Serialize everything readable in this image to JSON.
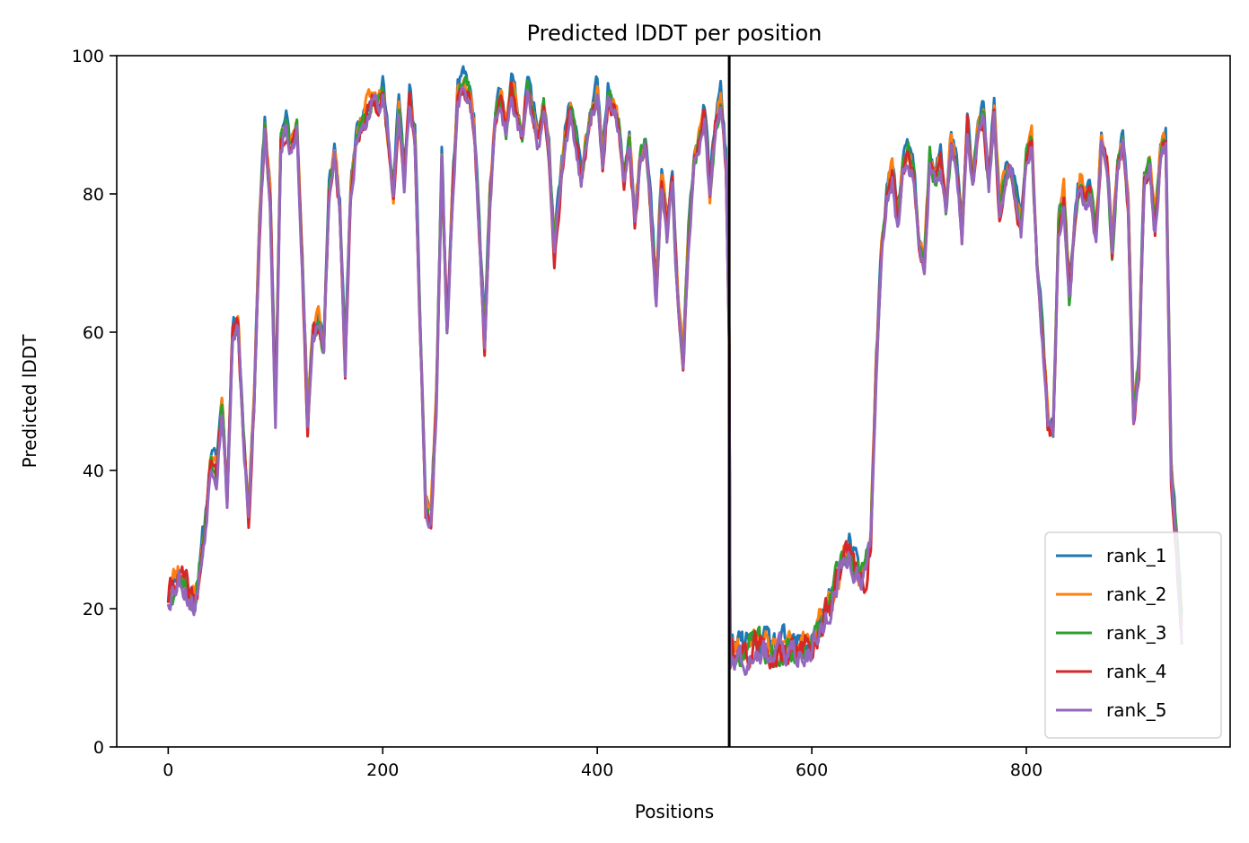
{
  "chart_data": {
    "type": "line",
    "title": "Predicted lDDT per position",
    "xlabel": "Positions",
    "ylabel": "Predicted lDDT",
    "xlim": [
      -48,
      990
    ],
    "ylim": [
      0,
      100
    ],
    "xticks": [
      0,
      200,
      400,
      600,
      800
    ],
    "yticks": [
      0,
      20,
      40,
      60,
      80,
      100
    ],
    "grid": false,
    "legend_position": "lower-right",
    "chain_break_x": 523,
    "chain_break_color": "#000000",
    "base_profile": [
      [
        0,
        22
      ],
      [
        5,
        24
      ],
      [
        10,
        25
      ],
      [
        15,
        24
      ],
      [
        20,
        22
      ],
      [
        25,
        21
      ],
      [
        30,
        26
      ],
      [
        35,
        33
      ],
      [
        40,
        42
      ],
      [
        45,
        40
      ],
      [
        50,
        50
      ],
      [
        55,
        36
      ],
      [
        60,
        60
      ],
      [
        65,
        62
      ],
      [
        70,
        45
      ],
      [
        75,
        33
      ],
      [
        80,
        50
      ],
      [
        85,
        75
      ],
      [
        90,
        90
      ],
      [
        95,
        80
      ],
      [
        100,
        48
      ],
      [
        105,
        88
      ],
      [
        110,
        90
      ],
      [
        115,
        86
      ],
      [
        120,
        90
      ],
      [
        125,
        70
      ],
      [
        130,
        47
      ],
      [
        135,
        60
      ],
      [
        140,
        62
      ],
      [
        145,
        58
      ],
      [
        150,
        80
      ],
      [
        155,
        86
      ],
      [
        160,
        78
      ],
      [
        165,
        55
      ],
      [
        170,
        80
      ],
      [
        175,
        88
      ],
      [
        180,
        90
      ],
      [
        185,
        92
      ],
      [
        190,
        94
      ],
      [
        195,
        93
      ],
      [
        200,
        95
      ],
      [
        205,
        88
      ],
      [
        210,
        80
      ],
      [
        215,
        93
      ],
      [
        220,
        82
      ],
      [
        225,
        94
      ],
      [
        230,
        88
      ],
      [
        235,
        60
      ],
      [
        240,
        35
      ],
      [
        245,
        33
      ],
      [
        250,
        50
      ],
      [
        255,
        85
      ],
      [
        260,
        60
      ],
      [
        265,
        80
      ],
      [
        270,
        94
      ],
      [
        275,
        96
      ],
      [
        280,
        95
      ],
      [
        285,
        90
      ],
      [
        290,
        75
      ],
      [
        295,
        58
      ],
      [
        300,
        80
      ],
      [
        305,
        91
      ],
      [
        310,
        94
      ],
      [
        315,
        89
      ],
      [
        320,
        96
      ],
      [
        325,
        92
      ],
      [
        330,
        88
      ],
      [
        335,
        96
      ],
      [
        340,
        92
      ],
      [
        345,
        88
      ],
      [
        350,
        93
      ],
      [
        355,
        86
      ],
      [
        360,
        72
      ],
      [
        365,
        80
      ],
      [
        370,
        88
      ],
      [
        375,
        92
      ],
      [
        380,
        88
      ],
      [
        385,
        82
      ],
      [
        390,
        88
      ],
      [
        395,
        92
      ],
      [
        400,
        95
      ],
      [
        405,
        84
      ],
      [
        410,
        94
      ],
      [
        415,
        93
      ],
      [
        420,
        90
      ],
      [
        425,
        82
      ],
      [
        430,
        88
      ],
      [
        435,
        76
      ],
      [
        440,
        85
      ],
      [
        445,
        88
      ],
      [
        450,
        78
      ],
      [
        455,
        65
      ],
      [
        460,
        83
      ],
      [
        465,
        75
      ],
      [
        470,
        82
      ],
      [
        475,
        65
      ],
      [
        480,
        55
      ],
      [
        485,
        73
      ],
      [
        490,
        85
      ],
      [
        495,
        88
      ],
      [
        500,
        92
      ],
      [
        505,
        80
      ],
      [
        510,
        90
      ],
      [
        515,
        94
      ],
      [
        520,
        85
      ],
      [
        523,
        60
      ],
      [
        524,
        14
      ],
      [
        530,
        14
      ],
      [
        540,
        14
      ],
      [
        550,
        15
      ],
      [
        560,
        14
      ],
      [
        570,
        14
      ],
      [
        580,
        14
      ],
      [
        590,
        14
      ],
      [
        600,
        15
      ],
      [
        610,
        18
      ],
      [
        615,
        20
      ],
      [
        620,
        22
      ],
      [
        625,
        25
      ],
      [
        630,
        27
      ],
      [
        635,
        28
      ],
      [
        640,
        26
      ],
      [
        645,
        24
      ],
      [
        650,
        25
      ],
      [
        655,
        30
      ],
      [
        660,
        55
      ],
      [
        665,
        72
      ],
      [
        670,
        80
      ],
      [
        675,
        83
      ],
      [
        680,
        76
      ],
      [
        685,
        84
      ],
      [
        690,
        86
      ],
      [
        695,
        83
      ],
      [
        700,
        72
      ],
      [
        705,
        70
      ],
      [
        710,
        85
      ],
      [
        715,
        82
      ],
      [
        720,
        85
      ],
      [
        725,
        78
      ],
      [
        730,
        88
      ],
      [
        735,
        84
      ],
      [
        740,
        74
      ],
      [
        745,
        90
      ],
      [
        750,
        82
      ],
      [
        755,
        90
      ],
      [
        760,
        92
      ],
      [
        765,
        82
      ],
      [
        770,
        92
      ],
      [
        775,
        78
      ],
      [
        780,
        82
      ],
      [
        785,
        84
      ],
      [
        790,
        80
      ],
      [
        795,
        75
      ],
      [
        800,
        85
      ],
      [
        805,
        88
      ],
      [
        810,
        70
      ],
      [
        815,
        60
      ],
      [
        820,
        47
      ],
      [
        825,
        45
      ],
      [
        830,
        75
      ],
      [
        835,
        80
      ],
      [
        840,
        65
      ],
      [
        845,
        76
      ],
      [
        850,
        82
      ],
      [
        855,
        79
      ],
      [
        860,
        80
      ],
      [
        865,
        74
      ],
      [
        870,
        88
      ],
      [
        875,
        85
      ],
      [
        880,
        72
      ],
      [
        885,
        84
      ],
      [
        890,
        88
      ],
      [
        895,
        78
      ],
      [
        900,
        48
      ],
      [
        905,
        55
      ],
      [
        910,
        82
      ],
      [
        915,
        84
      ],
      [
        920,
        75
      ],
      [
        925,
        86
      ],
      [
        930,
        88
      ],
      [
        935,
        40
      ],
      [
        940,
        30
      ],
      [
        945,
        17
      ]
    ],
    "series": [
      {
        "name": "rank_1",
        "color": "#1f77b4",
        "offset": 1.0,
        "seed": 11
      },
      {
        "name": "rank_2",
        "color": "#ff7f0e",
        "offset": 0.5,
        "seed": 23
      },
      {
        "name": "rank_3",
        "color": "#2ca02c",
        "offset": -0.2,
        "seed": 37
      },
      {
        "name": "rank_4",
        "color": "#d62728",
        "offset": -0.6,
        "seed": 41
      },
      {
        "name": "rank_5",
        "color": "#9467bd",
        "offset": -0.9,
        "seed": 53
      }
    ]
  }
}
